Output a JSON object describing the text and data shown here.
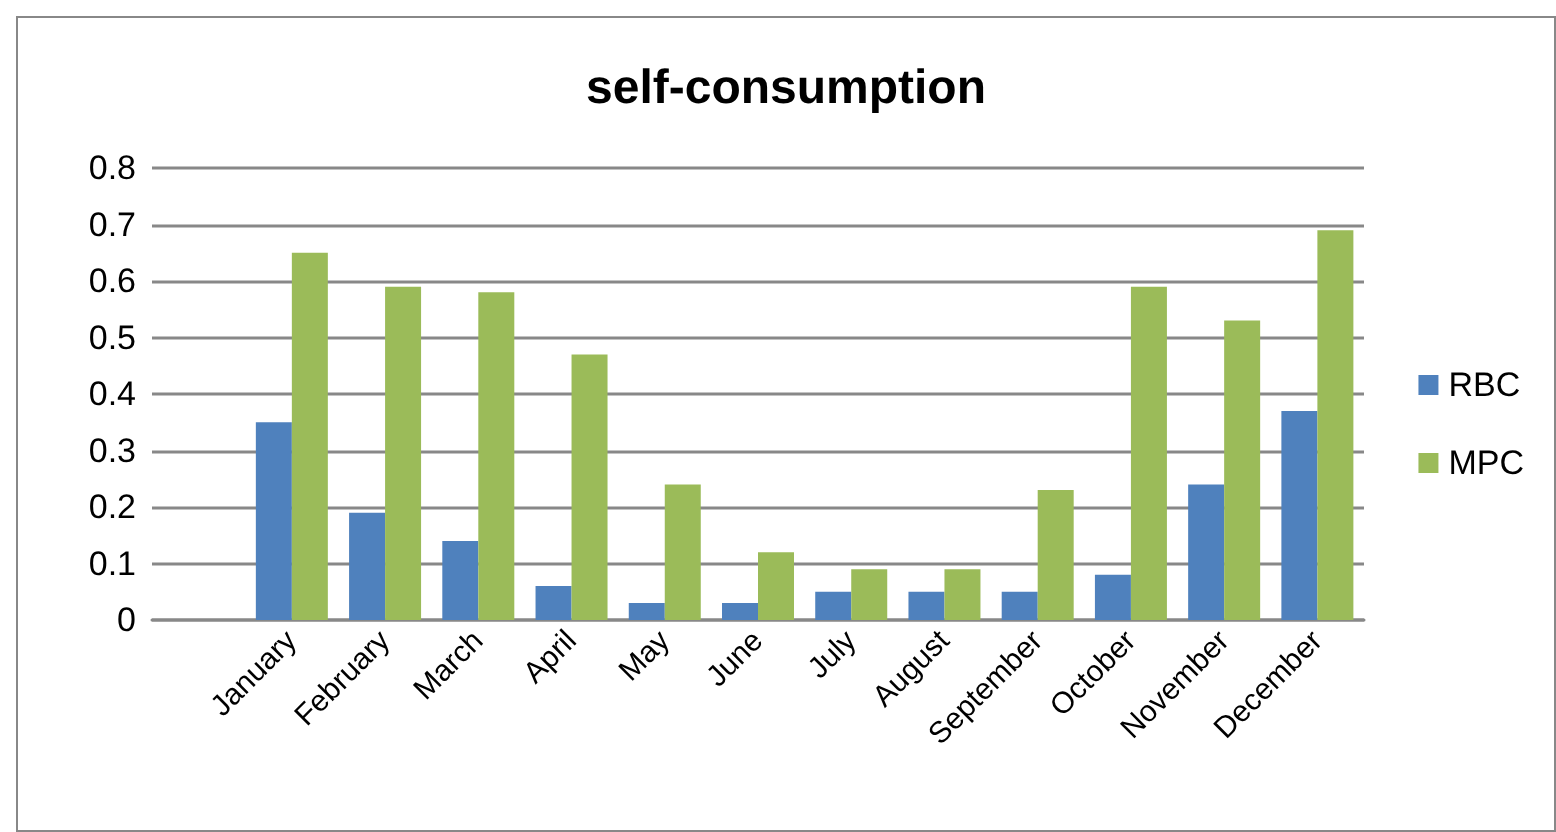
{
  "chart_data": {
    "type": "bar",
    "title": "self-consumption",
    "categories": [
      null,
      "January",
      "February",
      "March",
      "April",
      "May",
      "June",
      "July",
      "August",
      "September",
      "October",
      "November",
      "December"
    ],
    "series": [
      {
        "name": "RBC",
        "color": "#4f81bd",
        "values": [
          null,
          0.35,
          0.19,
          0.14,
          0.06,
          0.03,
          0.03,
          0.05,
          0.05,
          0.05,
          0.08,
          0.24,
          0.37
        ]
      },
      {
        "name": "MPC",
        "color": "#9bbb59",
        "values": [
          null,
          0.65,
          0.59,
          0.58,
          0.47,
          0.24,
          0.12,
          0.09,
          0.09,
          0.23,
          0.59,
          0.53,
          0.69
        ]
      }
    ],
    "ylim": [
      0,
      0.8
    ],
    "yticks": [
      0,
      0.1,
      0.2,
      0.3,
      0.4,
      0.5,
      0.6,
      0.7,
      0.8
    ],
    "grid": "y",
    "legend": "right"
  }
}
